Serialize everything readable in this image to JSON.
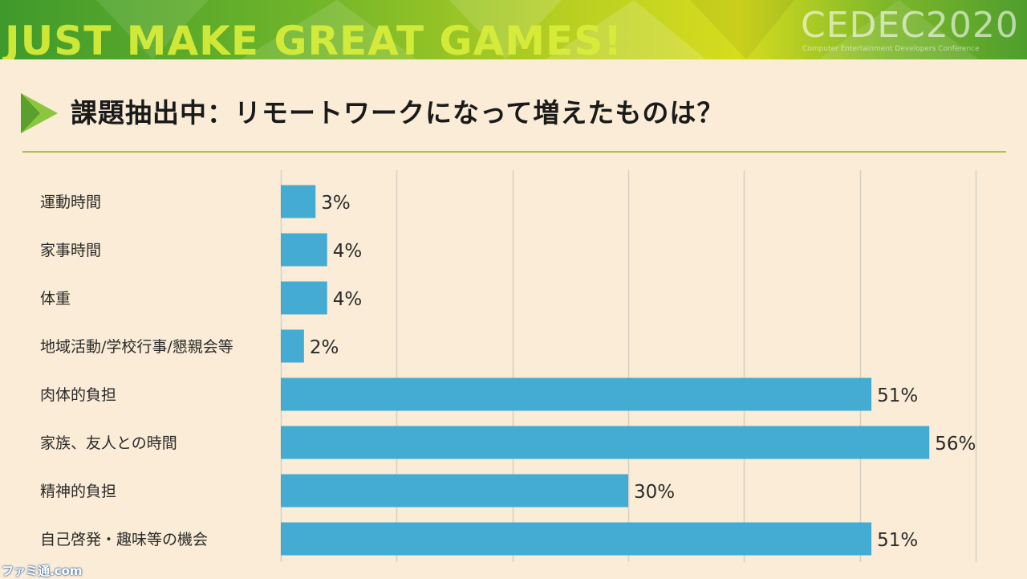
{
  "banner": {
    "slogan": "JUST MAKE GREAT GAMES!",
    "logo": "CEDEC2020",
    "logo_sub": "Computer Entertainment Developers Conference"
  },
  "slide": {
    "title": "課題抽出中：リモートワークになって増えたものは？"
  },
  "colors": {
    "bar": "#44abd2",
    "grid": "#d6cfc2",
    "title_rule": "#a3c34a",
    "background": "#faecd6"
  },
  "chart_data": {
    "type": "bar",
    "orientation": "horizontal",
    "categories": [
      "運動時間",
      "家事時間",
      "体重",
      "地域活動/学校行事/懇親会等",
      "肉体的負担",
      "家族、友人との時間",
      "精神的負担",
      "自己啓発・趣味等の機会"
    ],
    "values": [
      3,
      4,
      4,
      2,
      51,
      56,
      30,
      51
    ],
    "value_labels": [
      "3%",
      "4%",
      "4%",
      "2%",
      "51%",
      "56%",
      "30%",
      "51%"
    ],
    "xlim": [
      0,
      60
    ],
    "grid": true,
    "title": "",
    "xlabel": "",
    "ylabel": ""
  },
  "watermark": "ファミ通.com"
}
